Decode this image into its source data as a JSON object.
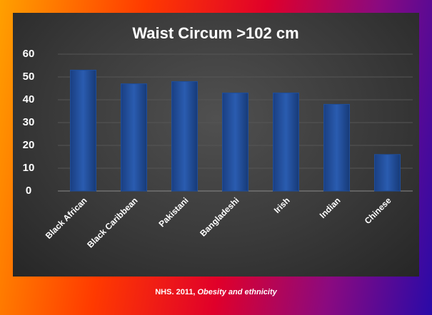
{
  "chart_data": {
    "type": "bar",
    "title": "Waist Circum >102 cm",
    "categories": [
      "Black African",
      "Black Caribbean",
      "Pakistani",
      "Bangladeshi",
      "Irish",
      "Indian",
      "Chinese"
    ],
    "values": [
      53,
      47,
      48,
      43,
      43,
      38,
      16
    ],
    "color": "#1f4e9a",
    "ylim": [
      0,
      60
    ],
    "yticks": [
      0,
      10,
      20,
      30,
      40,
      50,
      60
    ],
    "grid": true
  },
  "footer": {
    "source": "NHS. 2011,",
    "work": "Obesity and ethnicity"
  }
}
